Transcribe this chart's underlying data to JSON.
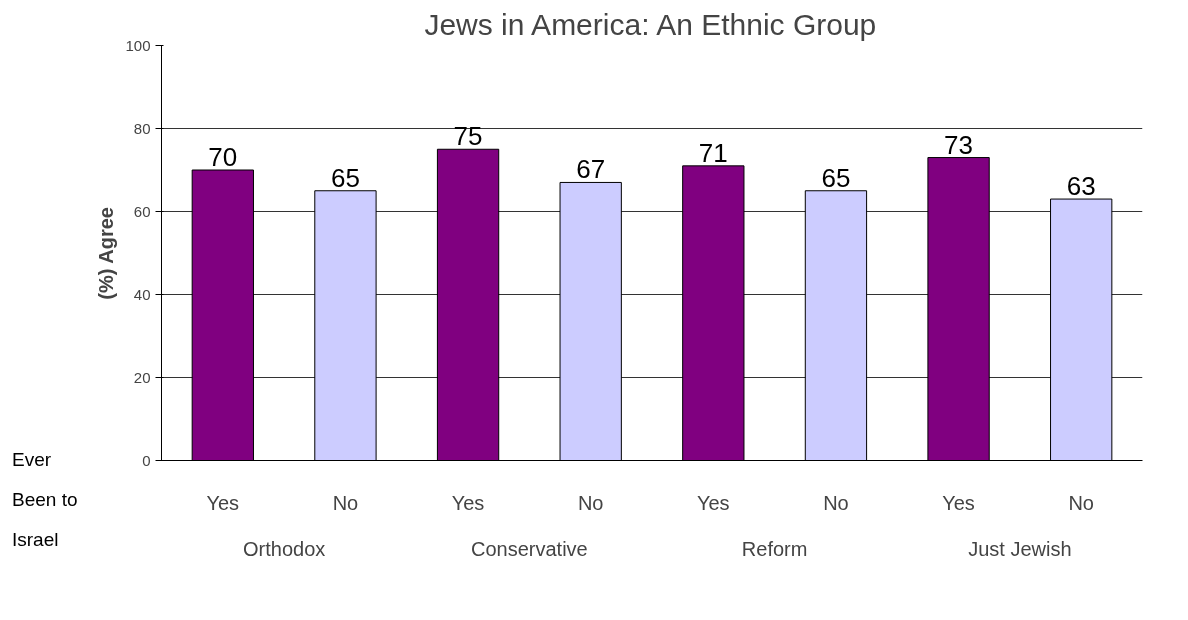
{
  "chart_data": {
    "type": "bar",
    "title": "Jews in America: An Ethnic Group",
    "ylabel": "(%) Agree",
    "xlabel": "Ever Been to Israel",
    "categories": [
      "Yes",
      "No",
      "Yes",
      "No",
      "Yes",
      "No",
      "Yes",
      "No"
    ],
    "values": [
      70,
      65,
      75,
      67,
      71,
      65,
      73,
      63
    ],
    "colors": [
      "#800080",
      "#ccccff",
      "#800080",
      "#ccccff",
      "#800080",
      "#ccccff",
      "#800080",
      "#ccccff"
    ],
    "annotations": [
      "Orthodox",
      "Conservative",
      "Reform",
      "Just Jewish"
    ],
    "ylim": [
      0,
      100
    ],
    "yticks": [
      0,
      20,
      40,
      60,
      80,
      100
    ],
    "grid": "y",
    "data_labels": true
  }
}
